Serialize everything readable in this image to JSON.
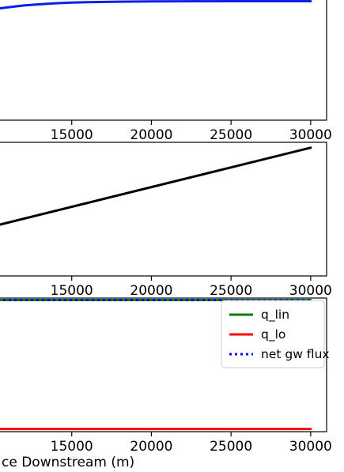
{
  "chart_data": [
    {
      "type": "line",
      "xlim": [
        10000,
        31000
      ],
      "ylim": [
        0,
        1
      ],
      "xticks": [
        15000,
        20000,
        25000,
        30000
      ],
      "xticklabels": [
        "15000",
        "20000",
        "25000",
        "30000"
      ],
      "series": [
        {
          "color": "#0a1fe8",
          "x": [
            10000,
            11000,
            12000,
            13000,
            14000,
            15000,
            16000,
            18000,
            20000,
            22000,
            25000,
            30000
          ],
          "y": [
            0.9,
            0.915,
            0.93,
            0.94,
            0.948,
            0.953,
            0.957,
            0.961,
            0.963,
            0.964,
            0.965,
            0.965
          ]
        }
      ]
    },
    {
      "type": "line",
      "xlim": [
        10000,
        31000
      ],
      "ylim": [
        0,
        1
      ],
      "xticks": [
        15000,
        20000,
        25000,
        30000
      ],
      "xticklabels": [
        "15000",
        "20000",
        "25000",
        "30000"
      ],
      "series": [
        {
          "color": "#000000",
          "x": [
            10000,
            30000
          ],
          "y": [
            0.37,
            0.96
          ]
        }
      ]
    },
    {
      "type": "line",
      "xlim": [
        10000,
        31000
      ],
      "ylim": [
        0,
        1
      ],
      "xticks": [
        15000,
        20000,
        25000,
        30000
      ],
      "xticklabels": [
        "15000",
        "20000",
        "25000",
        "30000"
      ],
      "xlabel": "Distance Downstream (m)",
      "visible_xlabel": "ce Downstream (m)",
      "legend_loc": "upper-right",
      "series": [
        {
          "name": "q_lin",
          "color": "#008000",
          "style": "solid",
          "x": [
            10000,
            30000
          ],
          "y": [
            0.985,
            0.985
          ]
        },
        {
          "name": "q_lo",
          "color": "#ff0000",
          "style": "solid",
          "x": [
            10000,
            30000
          ],
          "y": [
            0.02,
            0.02
          ]
        },
        {
          "name": "net gw flux",
          "color": "#0000ff",
          "style": "dotted",
          "x": [
            10000,
            30000
          ],
          "y": [
            0.985,
            0.985
          ]
        }
      ]
    }
  ]
}
